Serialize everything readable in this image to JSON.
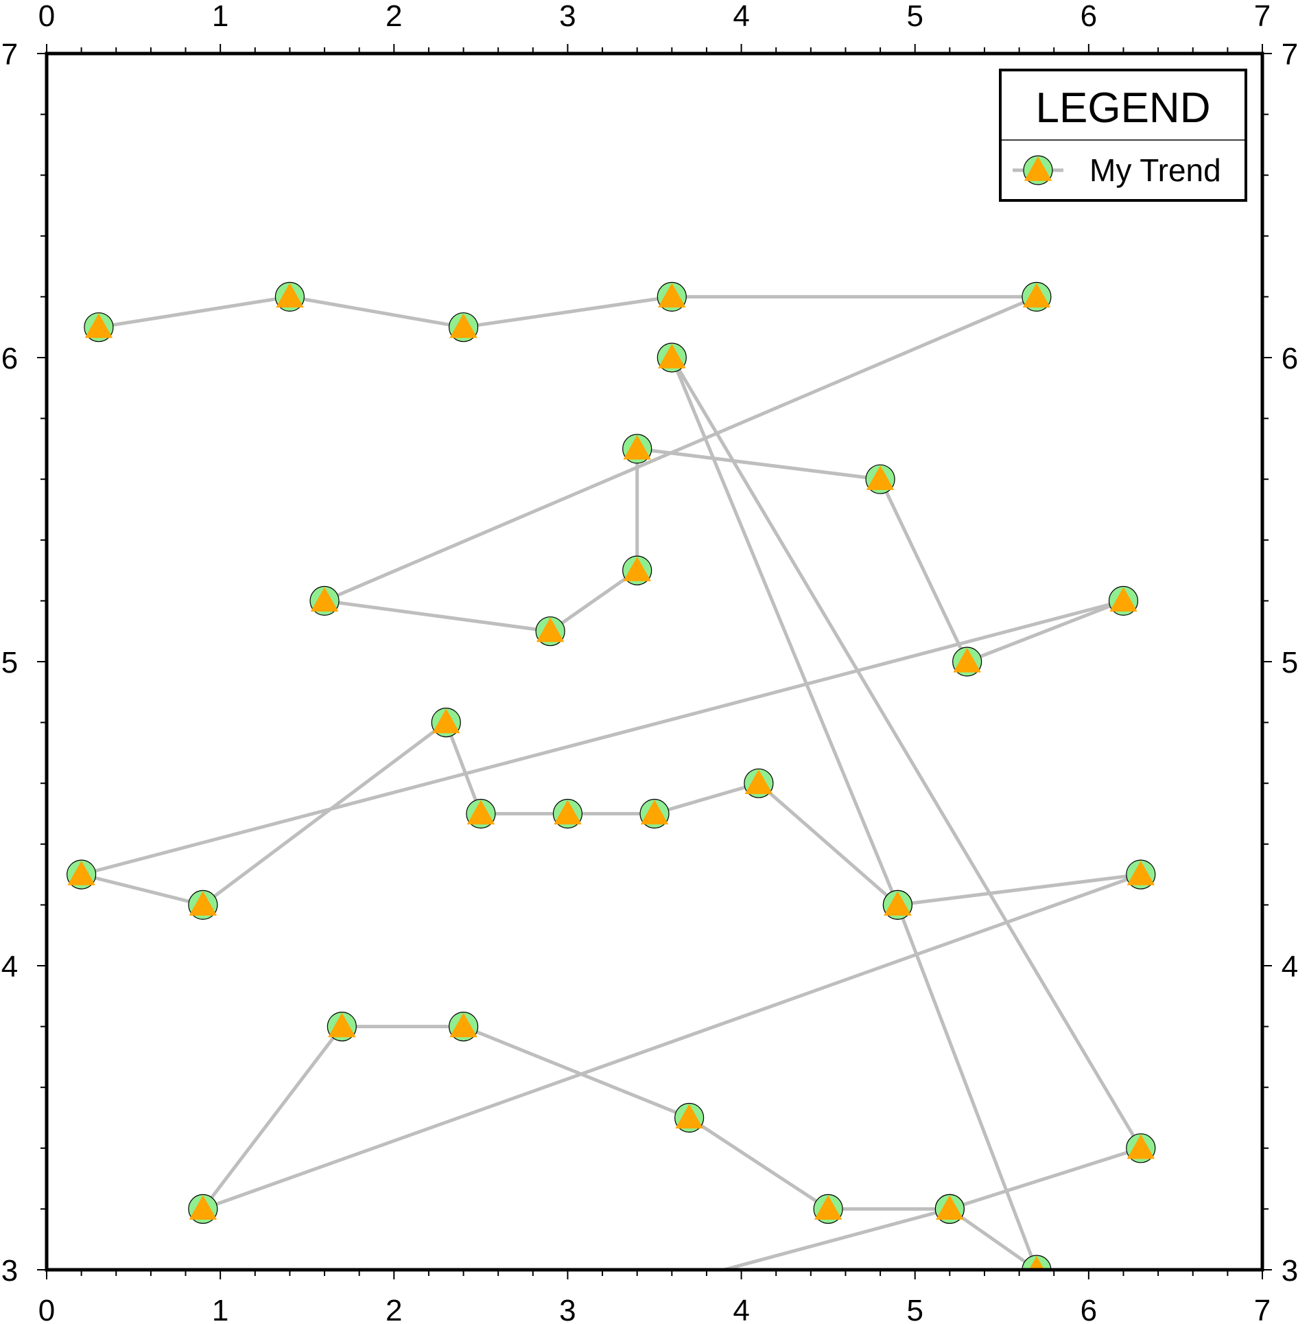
{
  "chart_data": {
    "type": "line",
    "title": "",
    "xlabel": "",
    "ylabel": "",
    "xlim": [
      0,
      7
    ],
    "ylim": [
      3,
      7
    ],
    "x_ticks": [
      "0",
      "1",
      "2",
      "3",
      "4",
      "5",
      "6",
      "7"
    ],
    "y_ticks": [
      "3",
      "4",
      "5",
      "6",
      "7"
    ],
    "grid": false,
    "legend": {
      "title": "LEGEND",
      "placement": "top-right",
      "entries": [
        "My Trend"
      ]
    },
    "series": [
      {
        "name": "My Trend",
        "line_color": "#bebebe",
        "marker_circle_color": "#90ee90",
        "marker_triangle_color": "#ffa500",
        "x": [
          0.3,
          1.4,
          2.4,
          3.6,
          5.7,
          1.6,
          2.9,
          3.4,
          3.4,
          4.8,
          5.3,
          6.2,
          0.2,
          0.9,
          2.3,
          2.5,
          3.0,
          3.5,
          4.1,
          4.9,
          6.3,
          0.9,
          1.7,
          2.4,
          3.7,
          4.5,
          5.2,
          6.3,
          3.6,
          4.9,
          5.7,
          5.2,
          3.9
        ],
        "y": [
          6.1,
          6.2,
          6.1,
          6.2,
          6.2,
          5.2,
          5.1,
          5.3,
          5.7,
          5.6,
          5.0,
          5.2,
          4.3,
          4.2,
          4.8,
          4.5,
          4.5,
          4.5,
          4.6,
          4.2,
          4.3,
          3.2,
          3.8,
          3.8,
          3.5,
          3.2,
          3.2,
          3.4,
          6.0,
          4.2,
          3.0,
          3.2,
          3.0
        ]
      }
    ]
  }
}
